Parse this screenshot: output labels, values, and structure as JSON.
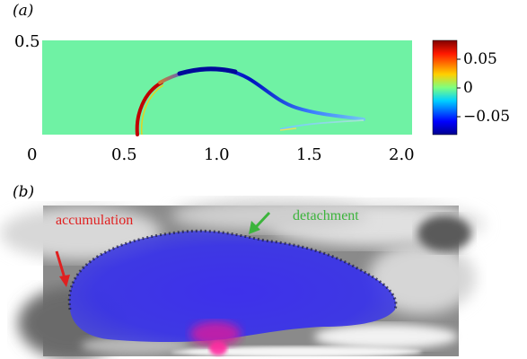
{
  "panel_a": {
    "label": "(a)",
    "y_tick": "0.5",
    "x_ticks": [
      "0",
      "0.5",
      "1.0",
      "1.5",
      "2.0"
    ],
    "colorbar_ticks": [
      "0.05",
      "0",
      "−0.05"
    ],
    "colors": {
      "background": "#6ff2a4",
      "positive": "#c80000",
      "negative": "#0010b8"
    }
  },
  "panel_b": {
    "label": "(b)",
    "annotations": {
      "accumulation": {
        "text": "accumulation",
        "color": "#e02020"
      },
      "detachment": {
        "text": "detachment",
        "color": "#3cb43c"
      }
    }
  },
  "chart_data": {
    "type": "heatmap",
    "xlim": [
      0,
      2.0
    ],
    "ylim": [
      0,
      0.5
    ],
    "x_ticks": [
      0,
      0.5,
      1.0,
      1.5,
      2.0
    ],
    "y_ticks": [
      0.5
    ],
    "colorbar_range": [
      -0.08,
      0.08
    ],
    "colorbar_ticks": [
      0.05,
      0,
      -0.05
    ],
    "grid": false
  }
}
